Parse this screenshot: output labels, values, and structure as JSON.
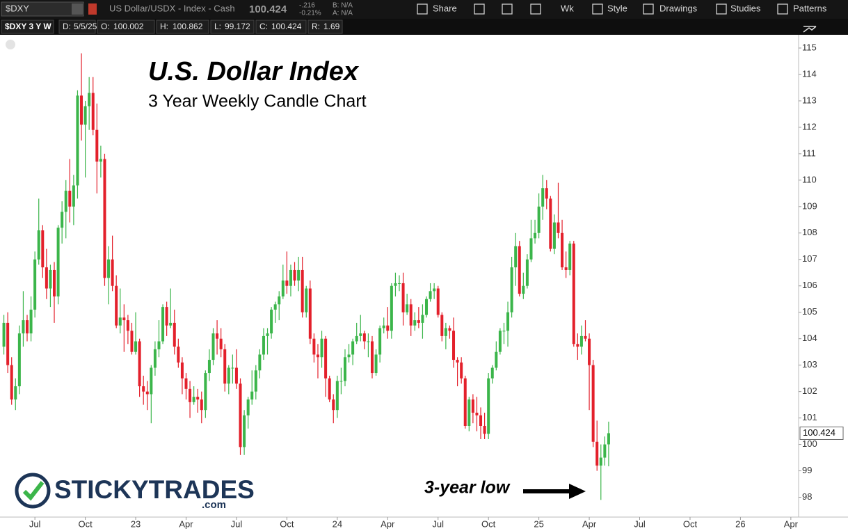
{
  "ui": {
    "symbol": "$DXY",
    "description": "US Dollar/USDX - Index - Cash",
    "change": "-.216",
    "change_pct": "-0.21%",
    "bid": "B: N/A",
    "ask": "A: N/A",
    "buttons": [
      "Share",
      "Wk",
      "Style",
      "Drawings",
      "Studies",
      "Patterns"
    ],
    "study": "$DXY 3 Y W",
    "date_label": "D:",
    "date": "5/5/25",
    "open_label": "O:",
    "high_label": "H:",
    "low_label": "L:",
    "close_label": "C:",
    "range_label": "R:",
    "range": 1.69,
    "logo": "STICKYTRADES",
    "logo_suffix": ".com"
  },
  "chart_data": {
    "type": "candlestick",
    "title": "U.S. Dollar Index",
    "subtitle": "3 Year Weekly Candle Chart",
    "annotation": "3-year low",
    "up_color": "#3bb54a",
    "down_color": "#e3202b",
    "open": [
      103.7,
      104.6,
      103.0,
      101.7,
      102.2,
      104.2,
      104.7,
      104.2,
      105.1,
      107.0,
      108.1,
      106.7,
      105.9,
      106.6,
      105.6,
      108.2,
      108.8,
      109.6,
      109.0,
      109.8,
      113.2,
      112.1,
      112.8,
      113.3,
      111.9,
      110.7,
      110.8,
      106.3,
      107.0,
      106.0,
      104.5,
      104.8,
      104.7,
      104.3,
      103.5,
      103.9,
      102.2,
      102.0,
      101.9,
      102.9,
      103.6,
      103.9,
      105.2,
      104.5,
      104.6,
      103.7,
      103.1,
      102.5,
      102.1,
      101.6,
      101.8,
      101.7,
      101.3,
      102.7,
      103.2,
      104.2,
      104.0,
      103.6,
      102.3,
      102.9,
      102.9,
      102.3,
      99.9,
      101.1,
      101.7,
      102.0,
      102.8,
      103.4,
      104.1,
      104.2,
      105.1,
      105.3,
      105.6,
      106.2,
      106.0,
      106.6,
      106.2,
      106.6,
      105.0,
      105.9,
      104.0,
      103.4,
      103.3,
      104.0,
      102.5,
      101.7,
      101.3,
      102.4,
      102.4,
      103.3,
      103.4,
      103.9,
      104.1,
      104.2,
      103.9,
      103.9,
      102.7,
      103.4,
      104.4,
      104.5,
      104.3,
      106.0,
      106.1,
      106.1,
      105.0,
      105.3,
      104.5,
      104.7,
      104.6,
      104.9,
      105.5,
      105.8,
      105.9,
      104.9,
      104.1,
      104.4,
      104.3,
      103.2,
      103.1,
      102.5,
      100.7,
      101.7,
      101.2,
      101.1,
      100.7,
      100.4,
      102.5,
      102.9,
      103.5,
      104.3,
      104.3,
      105.0,
      106.7,
      107.5,
      105.7,
      106.0,
      107.0,
      107.8,
      108.0,
      109.0,
      109.7,
      109.3,
      107.4,
      108.4,
      108.0,
      106.7,
      106.6,
      107.6,
      103.8,
      103.7,
      104.1,
      104.0,
      103.0,
      100.1,
      99.2,
      99.5,
      100.002
    ],
    "high": [
      104.9,
      105.0,
      103.3,
      102.5,
      104.5,
      105.8,
      104.9,
      105.6,
      107.3,
      109.3,
      108.3,
      107.4,
      106.8,
      106.9,
      108.3,
      109.2,
      110.0,
      110.8,
      110.2,
      113.4,
      114.8,
      113.0,
      113.9,
      113.9,
      112.9,
      111.3,
      111.0,
      107.5,
      107.9,
      106.4,
      105.9,
      105.3,
      104.9,
      104.6,
      105.0,
      104.0,
      102.6,
      102.4,
      103.0,
      103.9,
      104.7,
      105.3,
      105.4,
      105.9,
      105.1,
      104.0,
      103.3,
      102.7,
      102.4,
      102.2,
      102.1,
      102.0,
      102.8,
      103.6,
      104.4,
      104.7,
      104.4,
      103.8,
      103.0,
      103.4,
      103.6,
      102.5,
      101.3,
      101.8,
      102.8,
      103.0,
      103.6,
      104.4,
      104.4,
      105.2,
      105.4,
      105.8,
      106.8,
      107.3,
      106.8,
      106.9,
      107.1,
      107.1,
      106.0,
      106.2,
      104.2,
      103.8,
      104.3,
      104.1,
      102.6,
      101.9,
      102.6,
      102.9,
      103.6,
      103.8,
      104.0,
      104.6,
      104.9,
      104.3,
      104.2,
      104.1,
      103.6,
      104.5,
      104.8,
      105.2,
      106.1,
      106.5,
      106.4,
      106.5,
      105.7,
      105.5,
      105.0,
      105.2,
      105.3,
      105.6,
      106.1,
      106.1,
      106.0,
      105.0,
      104.6,
      104.5,
      104.8,
      103.3,
      103.3,
      102.6,
      101.8,
      101.9,
      101.8,
      101.4,
      101.2,
      102.7,
      103.0,
      103.9,
      104.4,
      104.6,
      105.4,
      107.1,
      108.0,
      107.7,
      106.5,
      107.2,
      108.5,
      108.5,
      109.5,
      110.2,
      110.0,
      109.4,
      108.7,
      109.9,
      108.5,
      107.3,
      107.7,
      107.7,
      104.2,
      104.5,
      104.7,
      104.2,
      103.2,
      100.9,
      100.0,
      100.3,
      100.862
    ],
    "low": [
      103.4,
      102.7,
      101.5,
      101.3,
      101.9,
      103.7,
      103.9,
      103.9,
      104.8,
      106.8,
      106.3,
      105.5,
      105.2,
      104.6,
      105.3,
      107.6,
      107.8,
      108.4,
      108.3,
      109.3,
      111.5,
      110.1,
      111.9,
      111.7,
      109.5,
      110.1,
      106.0,
      105.3,
      105.8,
      104.4,
      104.2,
      103.5,
      103.8,
      103.4,
      103.4,
      101.8,
      101.5,
      101.3,
      100.8,
      102.6,
      103.3,
      103.8,
      104.1,
      104.4,
      103.4,
      102.9,
      101.9,
      101.7,
      101.0,
      101.5,
      101.2,
      100.8,
      101.0,
      102.4,
      103.0,
      103.4,
      103.3,
      102.0,
      101.9,
      102.3,
      102.1,
      99.6,
      99.6,
      100.6,
      101.5,
      101.7,
      102.5,
      103.2,
      103.4,
      104.0,
      104.6,
      104.7,
      105.5,
      105.7,
      105.6,
      106.0,
      105.8,
      104.8,
      104.8,
      103.8,
      103.1,
      102.5,
      102.9,
      101.8,
      101.6,
      100.8,
      101.0,
      101.9,
      102.2,
      103.1,
      103.0,
      103.8,
      103.9,
      103.6,
      103.3,
      102.5,
      102.6,
      103.1,
      104.2,
      104.0,
      104.0,
      105.6,
      105.8,
      104.5,
      104.9,
      104.1,
      104.3,
      104.4,
      104.0,
      104.8,
      105.4,
      105.5,
      104.8,
      103.9,
      103.6,
      104.0,
      102.9,
      102.2,
      102.3,
      100.6,
      100.5,
      100.8,
      100.5,
      100.2,
      100.2,
      100.2,
      102.3,
      102.8,
      103.4,
      103.8,
      103.7,
      104.8,
      106.0,
      105.6,
      105.5,
      105.9,
      106.9,
      107.6,
      107.8,
      108.5,
      108.9,
      107.3,
      107.2,
      107.8,
      106.6,
      106.3,
      106.4,
      103.7,
      103.2,
      103.4,
      103.9,
      101.3,
      99.9,
      99.0,
      97.9,
      99.2,
      99.172
    ],
    "close": [
      104.6,
      103.0,
      101.7,
      102.2,
      104.2,
      104.7,
      104.2,
      105.1,
      107.0,
      108.1,
      106.7,
      105.9,
      106.6,
      105.6,
      108.2,
      108.8,
      109.6,
      109.0,
      109.8,
      113.2,
      112.1,
      112.8,
      113.3,
      111.9,
      110.7,
      110.8,
      106.3,
      107.0,
      106.0,
      104.5,
      104.8,
      104.7,
      104.3,
      103.5,
      103.9,
      102.2,
      102.0,
      101.9,
      102.9,
      103.6,
      103.9,
      105.2,
      104.5,
      104.6,
      103.7,
      103.1,
      102.5,
      102.1,
      101.6,
      101.8,
      101.7,
      101.3,
      102.7,
      103.2,
      104.2,
      104.0,
      103.6,
      102.3,
      102.9,
      102.9,
      102.3,
      99.9,
      101.1,
      101.7,
      102.0,
      102.8,
      103.4,
      104.1,
      104.2,
      105.1,
      105.3,
      105.6,
      106.2,
      106.0,
      106.6,
      106.2,
      106.6,
      105.0,
      105.9,
      104.0,
      103.4,
      103.3,
      104.0,
      102.5,
      101.7,
      101.3,
      102.4,
      102.4,
      103.3,
      103.4,
      103.9,
      104.1,
      104.2,
      103.9,
      103.9,
      102.7,
      103.4,
      104.4,
      104.5,
      104.3,
      106.0,
      106.1,
      106.1,
      105.0,
      105.3,
      104.5,
      104.7,
      104.6,
      104.9,
      105.5,
      105.8,
      105.9,
      104.9,
      104.1,
      104.4,
      104.3,
      103.2,
      103.1,
      102.5,
      100.7,
      101.7,
      101.2,
      101.1,
      100.7,
      100.4,
      102.5,
      102.9,
      103.5,
      104.3,
      104.3,
      105.0,
      106.7,
      107.5,
      105.7,
      106.0,
      107.0,
      107.8,
      108.0,
      109.0,
      109.7,
      109.3,
      107.4,
      108.4,
      108.0,
      106.7,
      106.6,
      107.6,
      103.8,
      103.7,
      104.1,
      104.0,
      103.0,
      100.1,
      99.2,
      99.5,
      100.0,
      100.424
    ],
    "xlim": [
      -1,
      205
    ],
    "xticks": [
      {
        "value": 8,
        "label": "Jul"
      },
      {
        "value": 21,
        "label": "Oct"
      },
      {
        "value": 34,
        "label": "23"
      },
      {
        "value": 47,
        "label": "Apr"
      },
      {
        "value": 60,
        "label": "Jul"
      },
      {
        "value": 73,
        "label": "Oct"
      },
      {
        "value": 86,
        "label": "24"
      },
      {
        "value": 99,
        "label": "Apr"
      },
      {
        "value": 112,
        "label": "Jul"
      },
      {
        "value": 125,
        "label": "Oct"
      },
      {
        "value": 138,
        "label": "25"
      },
      {
        "value": 151,
        "label": "Apr"
      },
      {
        "value": 164,
        "label": "Jul"
      },
      {
        "value": 177,
        "label": "Oct"
      },
      {
        "value": 190,
        "label": "26"
      },
      {
        "value": 203,
        "label": "Apr"
      }
    ],
    "ylim": [
      97.25,
      115.5
    ],
    "yticks": [
      98,
      99,
      100,
      101,
      102,
      103,
      104,
      105,
      106,
      107,
      108,
      109,
      110,
      111,
      112,
      113,
      114,
      115
    ]
  }
}
